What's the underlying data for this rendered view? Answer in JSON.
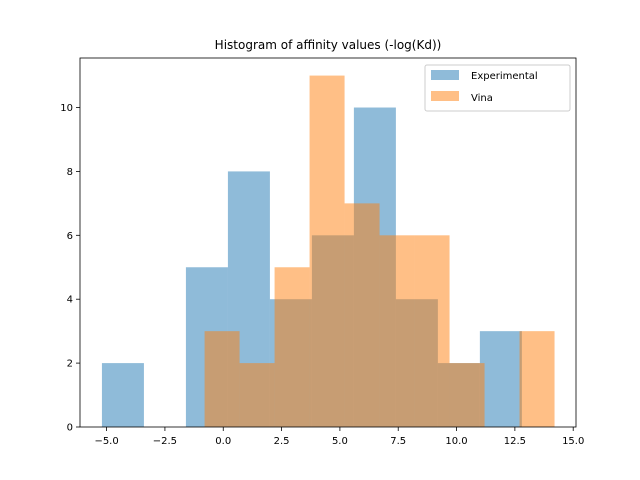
{
  "chart_data": {
    "type": "bar",
    "title": "Histogram of affinity values (-log(Kd))",
    "xlabel": "",
    "ylabel": "",
    "xlim": [
      -6.14,
      15.12
    ],
    "ylim": [
      0,
      11.55
    ],
    "xticks": [
      -5.0,
      -2.5,
      0.0,
      2.5,
      5.0,
      7.5,
      10.0,
      12.5,
      15.0
    ],
    "xtick_labels": [
      "−5.0",
      "−2.5",
      "0.0",
      "2.5",
      "5.0",
      "7.5",
      "10.0",
      "12.5",
      "15.0"
    ],
    "yticks": [
      0,
      2,
      4,
      6,
      8,
      10
    ],
    "ytick_labels": [
      "0",
      "2",
      "4",
      "6",
      "8",
      "10"
    ],
    "legend_position": "top-right",
    "grid": false,
    "series": [
      {
        "name": "Experimental",
        "color": "#1f77b4",
        "alpha": 0.5,
        "bin_edges": [
          -5.2,
          -3.4,
          -1.6,
          0.2,
          2.0,
          3.8,
          5.6,
          7.4,
          9.2,
          11.0,
          12.8
        ],
        "counts": [
          2,
          0,
          5,
          8,
          4,
          6,
          10,
          4,
          2,
          3
        ]
      },
      {
        "name": "Vina",
        "color": "#ff7f0e",
        "alpha": 0.5,
        "bin_edges": [
          -0.8,
          0.7,
          2.2,
          3.7,
          5.2,
          6.7,
          8.2,
          9.7,
          11.2,
          12.7,
          14.2
        ],
        "counts": [
          3,
          2,
          5,
          11,
          7,
          6,
          6,
          2,
          0,
          3
        ]
      }
    ]
  }
}
